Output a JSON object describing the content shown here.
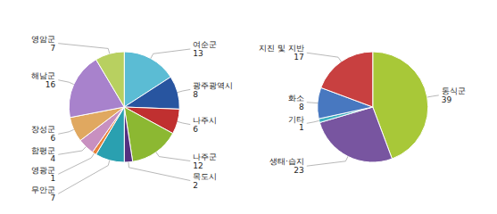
{
  "chart_data": [
    {
      "type": "pie",
      "categories": [
        "여순군\n13",
        "광주광역시\n8",
        "나주시\n6",
        "나주군\n12",
        "목도시\n2",
        "무안군\n7",
        "영광군\n1",
        "함평군\n4",
        "장성군\n6",
        "해남군\n16",
        "영암군\n7"
      ],
      "values": [
        13,
        8,
        6,
        12,
        2,
        7,
        1,
        4,
        6,
        16,
        7
      ],
      "colors": [
        "#5bbcd4",
        "#2855a0",
        "#c03030",
        "#8cb832",
        "#553080",
        "#2aa0b0",
        "#e8823a",
        "#c890c0",
        "#e0a860",
        "#a882cc",
        "#b8d060"
      ]
    },
    {
      "type": "pie",
      "categories": [
        "동식군\n39",
        "생태·습지\n23",
        "기타\n1",
        "화소\n8",
        "지진 및 지반\n17"
      ],
      "values": [
        39,
        23,
        1,
        8,
        17
      ],
      "colors": [
        "#a8c838",
        "#7855a0",
        "#40b0c0",
        "#4878c0",
        "#c84040"
      ]
    }
  ]
}
